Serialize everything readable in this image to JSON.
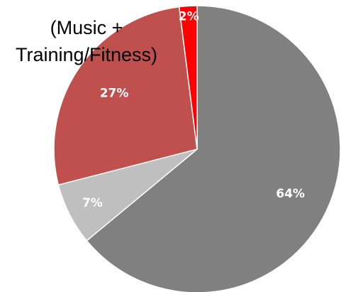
{
  "chart_data": {
    "type": "pie",
    "slices": [
      {
        "value": 64,
        "label": "64%",
        "color": "#808080"
      },
      {
        "value": 7,
        "label": "7%",
        "color": "#bfbfbf"
      },
      {
        "value": 27,
        "label": "27%",
        "color": "#c0504d"
      },
      {
        "value": 2,
        "label": "2%",
        "color": "#ff0000"
      }
    ],
    "annotation_lines": [
      "(Music +",
      "Training/Fitness)"
    ],
    "start": "12 o'clock",
    "direction": "clockwise"
  }
}
